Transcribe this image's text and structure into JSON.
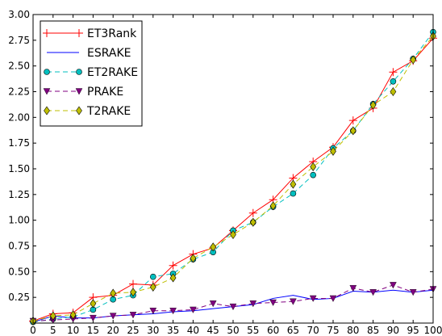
{
  "chart_data": {
    "type": "line",
    "xlim": [
      0,
      100
    ],
    "ylim": [
      0.0,
      3.0
    ],
    "xticks": [
      "0",
      "5",
      "10",
      "15",
      "20",
      "25",
      "30",
      "35",
      "40",
      "45",
      "50",
      "55",
      "60",
      "65",
      "70",
      "75",
      "80",
      "85",
      "90",
      "95",
      "100"
    ],
    "yticks": [
      "0.25",
      "0.50",
      "0.75",
      "1.00",
      "1.25",
      "1.50",
      "1.75",
      "2.00",
      "2.25",
      "2.50",
      "2.75",
      "3.00"
    ],
    "xlabel": "",
    "ylabel": "",
    "title": "",
    "grid": false,
    "legend_position": "top-left",
    "x": [
      0,
      5,
      10,
      15,
      20,
      25,
      30,
      35,
      40,
      45,
      50,
      55,
      60,
      65,
      70,
      75,
      80,
      85,
      90,
      95,
      100
    ],
    "series": [
      {
        "name": "ET3Rank",
        "color": "#ff0000",
        "marker": "plus",
        "linestyle": "solid",
        "values": [
          0.02,
          0.09,
          0.1,
          0.25,
          0.27,
          0.38,
          0.37,
          0.56,
          0.67,
          0.73,
          0.9,
          1.07,
          1.2,
          1.41,
          1.57,
          1.71,
          1.97,
          2.09,
          2.44,
          2.55,
          2.77
        ]
      },
      {
        "name": "ESRAKE",
        "color": "#0000ff",
        "marker": "none",
        "linestyle": "solid",
        "values": [
          0.01,
          0.07,
          0.05,
          0.05,
          0.07,
          0.08,
          0.09,
          0.11,
          0.12,
          0.14,
          0.16,
          0.18,
          0.24,
          0.27,
          0.23,
          0.24,
          0.31,
          0.3,
          0.32,
          0.3,
          0.32
        ]
      },
      {
        "name": "ET2RAKE",
        "color": "#00bfbf",
        "marker": "circle",
        "linestyle": "dashed",
        "values": [
          0.01,
          0.04,
          0.06,
          0.13,
          0.23,
          0.27,
          0.45,
          0.48,
          0.62,
          0.69,
          0.9,
          0.98,
          1.13,
          1.26,
          1.44,
          1.7,
          1.87,
          2.13,
          2.35,
          2.57,
          2.83
        ]
      },
      {
        "name": "PRAKE",
        "color": "#800080",
        "marker": "triangle-down",
        "linestyle": "dashed",
        "values": [
          0.02,
          0.03,
          0.04,
          0.05,
          0.07,
          0.08,
          0.12,
          0.12,
          0.13,
          0.19,
          0.16,
          0.19,
          0.2,
          0.21,
          0.24,
          0.24,
          0.34,
          0.3,
          0.37,
          0.3,
          0.33
        ]
      },
      {
        "name": "T2RAKE",
        "color": "#bfbf00",
        "marker": "diamond",
        "linestyle": "dashed",
        "values": [
          0.02,
          0.07,
          0.08,
          0.19,
          0.29,
          0.3,
          0.35,
          0.44,
          0.63,
          0.74,
          0.86,
          0.98,
          1.14,
          1.35,
          1.52,
          1.67,
          1.87,
          2.12,
          2.25,
          2.56,
          2.79
        ]
      }
    ]
  }
}
